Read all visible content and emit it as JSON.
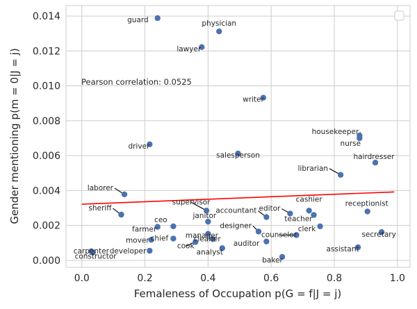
{
  "chart_data": {
    "type": "scatter",
    "xlabel": "Femaleness of Occupation p(G = f|J = j)",
    "ylabel": "Gender mentioning p(m = 0|J = j)",
    "xlim": [
      -0.05,
      1.04
    ],
    "ylim": [
      -0.0004,
      0.0146
    ],
    "x_ticks": [
      "0.0",
      "0.2",
      "0.4",
      "0.6",
      "0.8",
      "1.0"
    ],
    "y_ticks": [
      "0.000",
      "0.002",
      "0.004",
      "0.006",
      "0.008",
      "0.010",
      "0.012",
      "0.014"
    ],
    "grid": true,
    "legend": "top-right (empty)",
    "annotation": "Pearson correlation: 0.0525",
    "trend_line": {
      "color": "#ff0000",
      "from": [
        0.0,
        0.00322
      ],
      "to": [
        0.99,
        0.00392
      ]
    },
    "point_color": "#4c72b0",
    "points": [
      {
        "label": "guard",
        "x": 0.24,
        "y": 0.01388
      },
      {
        "label": "physician",
        "x": 0.435,
        "y": 0.01312
      },
      {
        "label": "lawyer",
        "x": 0.38,
        "y": 0.01222
      },
      {
        "label": "writer",
        "x": 0.575,
        "y": 0.00932
      },
      {
        "label": "housekeeper",
        "x": 0.88,
        "y": 0.00715
      },
      {
        "label": "nurse",
        "x": 0.88,
        "y": 0.007
      },
      {
        "label": "driver",
        "x": 0.215,
        "y": 0.00665
      },
      {
        "label": "salesperson",
        "x": 0.495,
        "y": 0.00612
      },
      {
        "label": "hairdresser",
        "x": 0.93,
        "y": 0.0056
      },
      {
        "label": "librarian",
        "x": 0.82,
        "y": 0.0049
      },
      {
        "label": "laborer",
        "x": 0.135,
        "y": 0.00378
      },
      {
        "label": "sheriff",
        "x": 0.125,
        "y": 0.00262
      },
      {
        "label": "supervisor",
        "x": 0.395,
        "y": 0.00285
      },
      {
        "label": "accountant",
        "x": 0.585,
        "y": 0.00248
      },
      {
        "label": "editor",
        "x": 0.66,
        "y": 0.00268
      },
      {
        "label": "cashier",
        "x": 0.72,
        "y": 0.00285
      },
      {
        "label": "teacher",
        "x": 0.735,
        "y": 0.0026
      },
      {
        "label": "receptionist",
        "x": 0.905,
        "y": 0.0028
      },
      {
        "label": "janitor",
        "x": 0.4,
        "y": 0.00222
      },
      {
        "label": "ceo",
        "x": 0.29,
        "y": 0.00195
      },
      {
        "label": "farmer",
        "x": 0.24,
        "y": 0.00192
      },
      {
        "label": "designer",
        "x": 0.56,
        "y": 0.00165
      },
      {
        "label": "clerk",
        "x": 0.755,
        "y": 0.00195
      },
      {
        "label": "manager",
        "x": 0.4,
        "y": 0.00152
      },
      {
        "label": "counselor",
        "x": 0.68,
        "y": 0.00145
      },
      {
        "label": "secretary",
        "x": 0.95,
        "y": 0.00162
      },
      {
        "label": "mover",
        "x": 0.22,
        "y": 0.00118
      },
      {
        "label": "chief",
        "x": 0.29,
        "y": 0.00125
      },
      {
        "label": "cleaner",
        "x": 0.415,
        "y": 0.00122
      },
      {
        "label": "cook",
        "x": 0.36,
        "y": 0.00105
      },
      {
        "label": "auditor",
        "x": 0.585,
        "y": 0.00108
      },
      {
        "label": "analyst",
        "x": 0.445,
        "y": 0.0007
      },
      {
        "label": "developer",
        "x": 0.215,
        "y": 0.00055
      },
      {
        "label": "carpenter",
        "x": 0.03,
        "y": 0.00052
      },
      {
        "label": "constructor",
        "x": 0.035,
        "y": 0.00045
      },
      {
        "label": "assistant",
        "x": 0.875,
        "y": 0.00075
      },
      {
        "label": "baker",
        "x": 0.635,
        "y": 0.0002
      }
    ]
  }
}
